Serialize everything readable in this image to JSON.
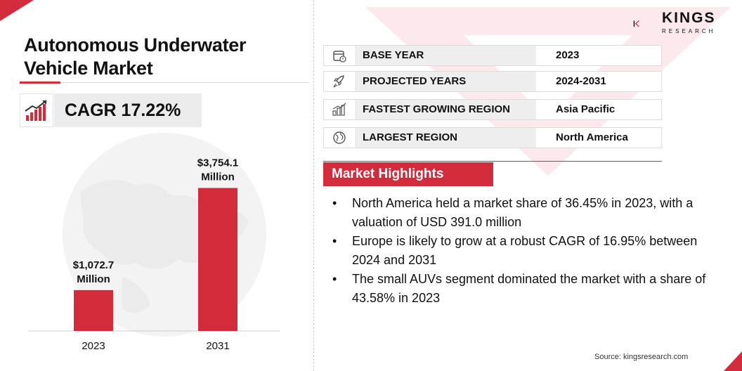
{
  "title": "Autonomous Underwater Vehicle Market",
  "title_line1": "Autonomous Underwater",
  "title_line2": "Vehicle Market",
  "cagr": "CAGR 17.22%",
  "brand": {
    "name": "KINGS",
    "tagline": "RESEARCH",
    "accent_color": "#d22b3c"
  },
  "info_rows": [
    {
      "icon": "calendar-icon",
      "label": "BASE YEAR",
      "value": "2023"
    },
    {
      "icon": "rocket-icon",
      "label": "PROJECTED YEARS",
      "value": "2024-2031"
    },
    {
      "icon": "growth-region-icon",
      "label": "FASTEST GROWING REGION",
      "value": "Asia Pacific"
    },
    {
      "icon": "globe-icon",
      "label": "LARGEST REGION",
      "value": "North America"
    }
  ],
  "highlights_title": "Market Highlights",
  "highlights": [
    "North America held a market share of 36.45% in 2023, with a valuation of USD 391.0 million",
    "Europe is likely to grow at a robust CAGR of 16.95% between 2024 and 2031",
    "The small AUVs segment dominated the market with a share of 43.58% in 2023"
  ],
  "source": "Source: kingsresearch.com",
  "chart_data": {
    "type": "bar",
    "categories": [
      "2023",
      "2031"
    ],
    "values": [
      1072.7,
      3754.1
    ],
    "value_labels": [
      "$1,072.7",
      "$3,754.1"
    ],
    "unit_label": "Million",
    "title": "",
    "xlabel": "",
    "ylabel": "",
    "ylim": [
      0,
      5000
    ],
    "bar_color": "#d22b3c",
    "grid": false,
    "legend": "none"
  }
}
